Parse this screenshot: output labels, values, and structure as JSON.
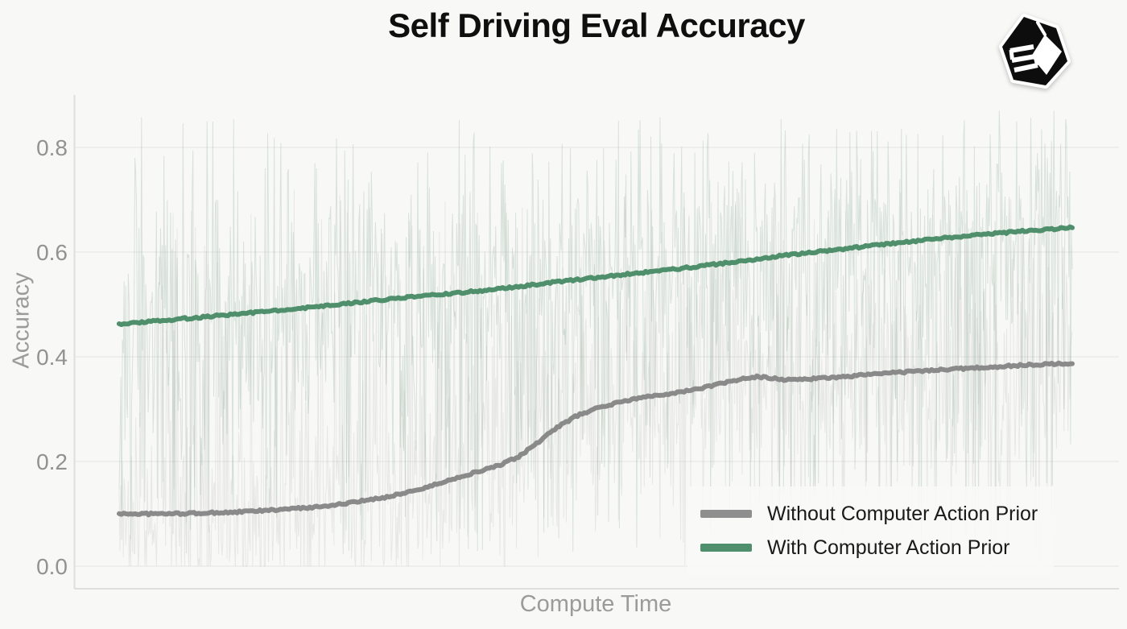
{
  "page": {
    "title": "Self Driving Eval Accuracy",
    "logo_name": "black-cube-hexagon-logo"
  },
  "chart_data": {
    "type": "line",
    "title": "Self Driving Eval Accuracy",
    "xlabel": "Compute Time",
    "ylabel": "Accuracy",
    "ylim": [
      -0.043,
      0.9
    ],
    "xlim": [
      0,
      1
    ],
    "yticks": [
      0.0,
      0.2,
      0.4,
      0.6,
      0.8
    ],
    "ytick_labels": [
      "0.0",
      "0.2",
      "0.4",
      "0.6",
      "0.8"
    ],
    "xtick_labels_visible": false,
    "grid": {
      "horizontal": true,
      "vertical": false
    },
    "legend": {
      "position": "lower-right",
      "frame": false,
      "entries": [
        {
          "label": "Without Computer Action Prior",
          "color": "#8f8f8f"
        },
        {
          "label": "With Computer Action Prior",
          "color": "#4f8f6b"
        }
      ]
    },
    "series": [
      {
        "name": "Without Computer Action Prior",
        "color": "#8a8a8a",
        "line_width": 6,
        "x": [
          0,
          0.04,
          0.08,
          0.12,
          0.16,
          0.2,
          0.24,
          0.28,
          0.32,
          0.36,
          0.4,
          0.42,
          0.44,
          0.46,
          0.48,
          0.5,
          0.52,
          0.54,
          0.56,
          0.58,
          0.6,
          0.62,
          0.64,
          0.655,
          0.67,
          0.7,
          0.73,
          0.76,
          0.8,
          0.85,
          0.9,
          0.95,
          1.0
        ],
        "y": [
          0.1,
          0.1,
          0.101,
          0.103,
          0.107,
          0.112,
          0.12,
          0.132,
          0.149,
          0.172,
          0.193,
          0.21,
          0.237,
          0.266,
          0.287,
          0.301,
          0.311,
          0.319,
          0.326,
          0.33,
          0.336,
          0.344,
          0.352,
          0.358,
          0.362,
          0.356,
          0.358,
          0.362,
          0.368,
          0.374,
          0.379,
          0.384,
          0.388
        ]
      },
      {
        "name": "With Computer Action Prior",
        "color": "#4f8f6b",
        "line_width": 6,
        "x": [
          0,
          0.05,
          0.1,
          0.15,
          0.2,
          0.25,
          0.3,
          0.35,
          0.4,
          0.45,
          0.5,
          0.55,
          0.6,
          0.65,
          0.7,
          0.75,
          0.8,
          0.85,
          0.9,
          0.95,
          1.0
        ],
        "y": [
          0.463,
          0.47,
          0.478,
          0.486,
          0.494,
          0.504,
          0.513,
          0.521,
          0.53,
          0.541,
          0.551,
          0.561,
          0.571,
          0.582,
          0.594,
          0.604,
          0.614,
          0.624,
          0.633,
          0.64,
          0.647
        ]
      }
    ],
    "raw_traces": [
      {
        "follows": "Without Computer Action Prior",
        "description": "noisy raw accuracy trace, clipped at 0",
        "color": "#8c8c8c",
        "opacity": 0.16,
        "seed": 11,
        "points": 1150,
        "jitter": 0.125,
        "spike_chance": 0.3,
        "spike_min": 0.0,
        "spike_max": 0.72
      },
      {
        "follows": "With Computer Action Prior",
        "description": "noisy raw accuracy trace, clipped at 0 and ~0.87",
        "color": "#5a8c69",
        "opacity": 0.2,
        "seed": 29,
        "points": 1150,
        "jitter": 0.135,
        "spike_chance": 0.36,
        "spike_min": 0.02,
        "spike_max": 0.86
      }
    ],
    "style": {
      "background": "#f8f8f7",
      "grid_color": "#ebebe9",
      "spine_color": "#dededc",
      "tick_label_color": "#929292",
      "title_color": "#0f0f0f"
    }
  }
}
